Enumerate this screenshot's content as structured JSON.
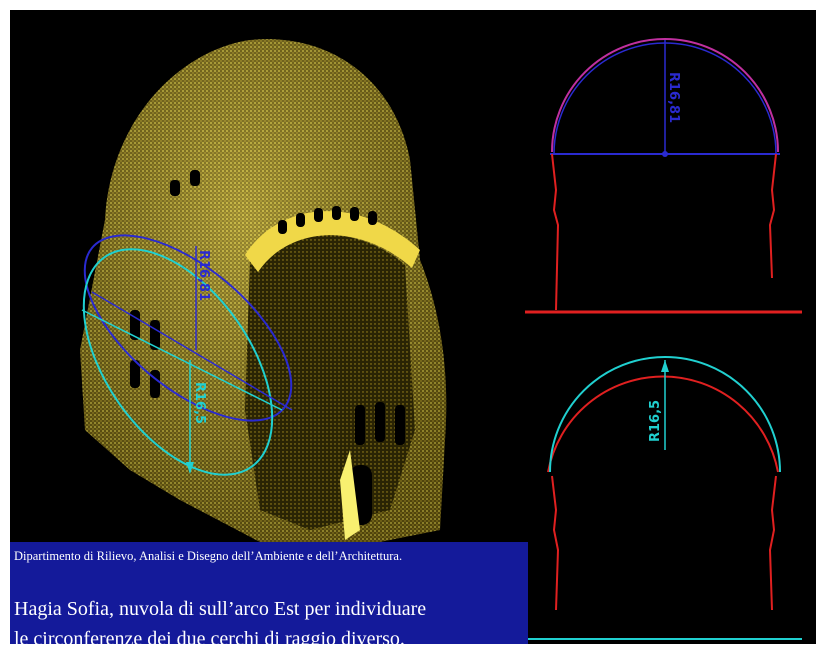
{
  "caption": {
    "department": "Dipartimento di Rilievo, Analisi e Disegno dell’Ambiente e dell’Architettura.",
    "title_line1": "Hagia Sofia, nuvola di sull’arco Est per individuare",
    "title_line2": "le circonferenze dei due cerchi di raggio diverso."
  },
  "pointcloud": {
    "radius_large": "R16,81",
    "radius_small": "R16,5"
  },
  "section_top": {
    "radius": "R16,81"
  },
  "section_bottom": {
    "radius": "R16,5"
  },
  "colors": {
    "background": "#000000",
    "caption_background": "#141a9a",
    "pointcloud": "#d8c830",
    "circle_blue": "#2a2ad0",
    "circle_cyan": "#20d0d0",
    "profile_red": "#e02020",
    "arc_magenta": "#c030a0"
  }
}
